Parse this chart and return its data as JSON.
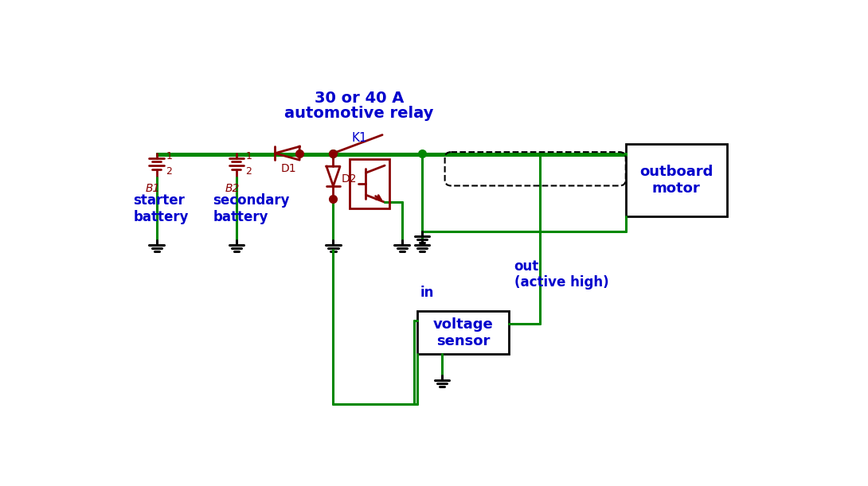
{
  "bg_color": "#ffffff",
  "green": "#008800",
  "red": "#880000",
  "blue": "#0000cc",
  "black": "#000000",
  "title_line1": "30 or 40 A",
  "title_line2": "automotive relay",
  "relay_label": "K1",
  "lw": 2.2,
  "lc": 2.0
}
